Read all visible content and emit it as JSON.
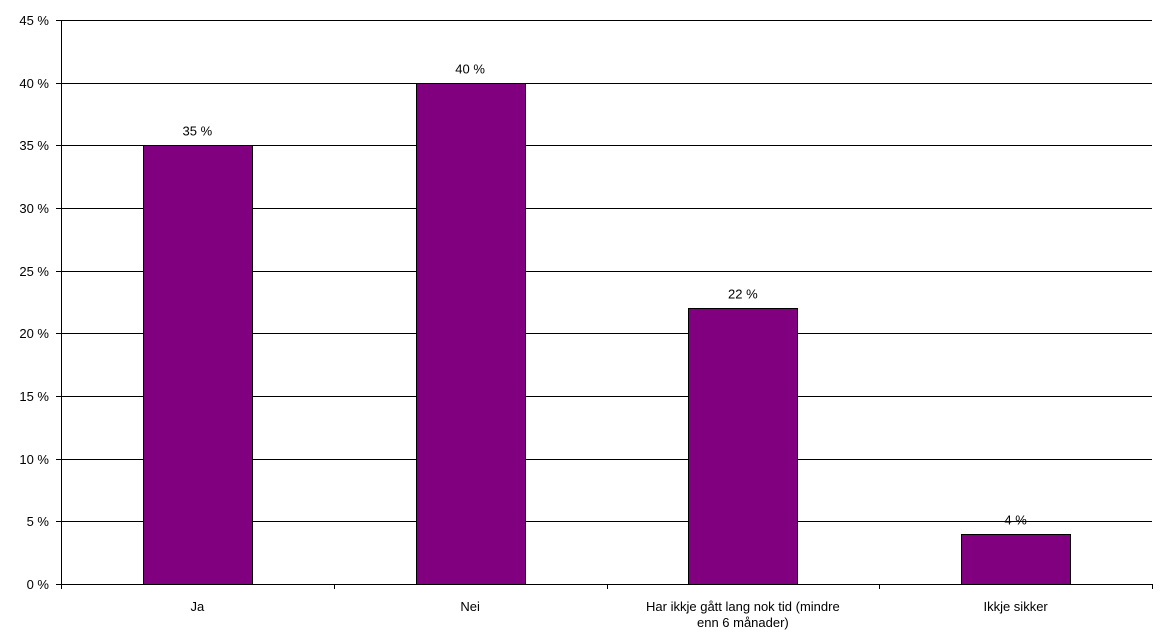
{
  "chart_data": {
    "type": "bar",
    "categories": [
      [
        "Ja"
      ],
      [
        "Nei"
      ],
      [
        "Har ikkje gått lang nok tid (mindre",
        "enn 6 månader)"
      ],
      [
        "Ikkje sikker"
      ]
    ],
    "values": [
      35,
      40,
      22,
      4
    ],
    "data_labels": [
      "35 %",
      "40 %",
      "22 %",
      "4 %"
    ],
    "y_ticks": [
      "0 %",
      "5 %",
      "10 %",
      "15 %",
      "20 %",
      "25 %",
      "30 %",
      "35 %",
      "40 %",
      "45 %"
    ],
    "ylim": [
      0,
      45
    ],
    "grid": true,
    "legend": "none",
    "colors": {
      "bar": "#800080",
      "bar_border": "#000000",
      "grid": "#000000"
    }
  }
}
